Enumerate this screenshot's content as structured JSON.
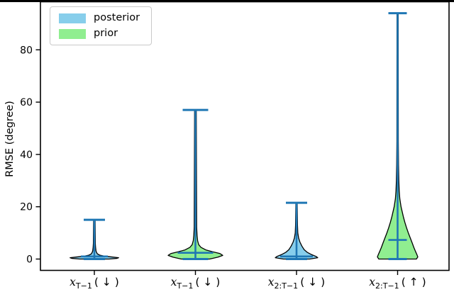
{
  "figure": {
    "background": "#ffffff",
    "top_edge_color": "#000000"
  },
  "chart_data": {
    "type": "violin",
    "title": "",
    "xlabel": "",
    "ylabel": "RMSE (degree)",
    "yticks": [
      0,
      20,
      40,
      60,
      80
    ],
    "ylim": [
      -5,
      98
    ],
    "grid": false,
    "edge_color": "#000000",
    "line_color": "#1f77b4",
    "legend": {
      "position": "upper left",
      "entries": [
        {
          "label": "posterior",
          "color": "#87ceeb"
        },
        {
          "label": "prior",
          "color": "#90ee90"
        }
      ]
    },
    "categories": [
      {
        "display": "x_{T-1} ( ↓ )",
        "var": "x",
        "sub": "T−1",
        "arrow": "↓"
      },
      {
        "display": "x_{T-1} ( ↓ )",
        "var": "x",
        "sub": "T−1",
        "arrow": "↓"
      },
      {
        "display": "x_{2:T-1} ( ↓ )",
        "var": "x",
        "sub": "2:T−1",
        "arrow": "↓"
      },
      {
        "display": "x_{2:T-1} ( ↑ )",
        "var": "x",
        "sub": "2:T−1",
        "arrow": "↑"
      }
    ],
    "violins": [
      {
        "category_index": 0,
        "series": "posterior",
        "fill": "#87ceeb",
        "min": 0,
        "max": 15,
        "mean": 1.0,
        "halfwidth_units": 0.24,
        "mean_hw": 19,
        "cap_hw": 15,
        "profile": [
          [
            0,
            0.6
          ],
          [
            0.25,
            0.92
          ],
          [
            0.5,
            1.0
          ],
          [
            0.8,
            0.72
          ],
          [
            1.1,
            0.42
          ],
          [
            1.5,
            0.22
          ],
          [
            2.0,
            0.12
          ],
          [
            3.0,
            0.07
          ],
          [
            4.5,
            0.05
          ],
          [
            6,
            0.04
          ],
          [
            15,
            0.03
          ]
        ]
      },
      {
        "category_index": 1,
        "series": "prior",
        "fill": "#90ee90",
        "min": 0,
        "max": 57,
        "mean": 2.4,
        "halfwidth_units": 0.27,
        "mean_hw": 25,
        "cap_hw": 18,
        "profile": [
          [
            0,
            0.52
          ],
          [
            0.7,
            0.82
          ],
          [
            1.4,
            1.0
          ],
          [
            2.1,
            0.9
          ],
          [
            2.8,
            0.62
          ],
          [
            3.5,
            0.38
          ],
          [
            4.5,
            0.2
          ],
          [
            5.5,
            0.12
          ],
          [
            7,
            0.08
          ],
          [
            9,
            0.06
          ],
          [
            12,
            0.045
          ],
          [
            57,
            0.03
          ]
        ]
      },
      {
        "category_index": 2,
        "series": "posterior",
        "fill": "#87ceeb",
        "min": 0,
        "max": 21.5,
        "mean": 1.0,
        "halfwidth_units": 0.21,
        "mean_hw": 23,
        "cap_hw": 15,
        "profile": [
          [
            0,
            0.62
          ],
          [
            0.5,
            1.0
          ],
          [
            1.0,
            0.92
          ],
          [
            1.8,
            0.68
          ],
          [
            2.6,
            0.5
          ],
          [
            3.6,
            0.36
          ],
          [
            5,
            0.25
          ],
          [
            6.5,
            0.16
          ],
          [
            8,
            0.1
          ],
          [
            10,
            0.06
          ],
          [
            13,
            0.045
          ],
          [
            21.5,
            0.03
          ]
        ]
      },
      {
        "category_index": 3,
        "series": "prior",
        "fill": "#90ee90",
        "min": 0,
        "max": 94,
        "mean": 7.3,
        "halfwidth_units": 0.2,
        "mean_hw": 13,
        "cap_hw": 13,
        "profile": [
          [
            0,
            0.93
          ],
          [
            0.8,
            1.0
          ],
          [
            1.8,
            0.95
          ],
          [
            3,
            0.88
          ],
          [
            4.5,
            0.8
          ],
          [
            6,
            0.73
          ],
          [
            8,
            0.63
          ],
          [
            10,
            0.53
          ],
          [
            12,
            0.44
          ],
          [
            14,
            0.36
          ],
          [
            16,
            0.29
          ],
          [
            18,
            0.23
          ],
          [
            20,
            0.17
          ],
          [
            23,
            0.11
          ],
          [
            26,
            0.08
          ],
          [
            30,
            0.06
          ],
          [
            36,
            0.045
          ],
          [
            45,
            0.035
          ],
          [
            94,
            0.028
          ]
        ]
      }
    ]
  }
}
